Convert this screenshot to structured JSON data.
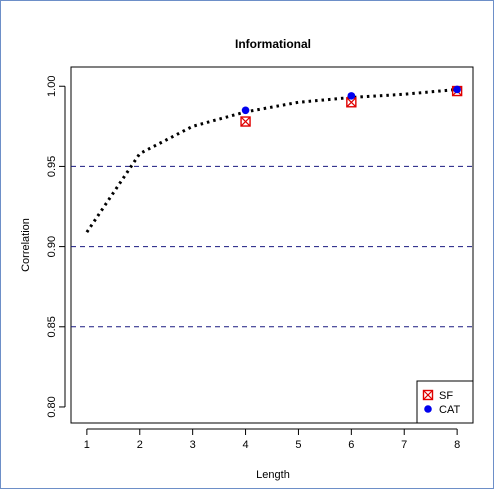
{
  "chart_data": {
    "type": "scatter",
    "title": "Informational",
    "xlabel": "Length",
    "ylabel": "Correlation",
    "xlim": [
      0.7,
      8.3
    ],
    "ylim": [
      0.79,
      1.012
    ],
    "x_ticks": [
      1,
      2,
      3,
      4,
      5,
      6,
      7,
      8
    ],
    "y_ticks": [
      0.8,
      0.85,
      0.9,
      0.95,
      1.0
    ],
    "y_tick_labels": [
      "0.80",
      "0.85",
      "0.90",
      "0.95",
      "1.00"
    ],
    "reference_lines": [
      0.85,
      0.9,
      0.95
    ],
    "curve": {
      "x": [
        1,
        2,
        3,
        4,
        5,
        6,
        7,
        8
      ],
      "y": [
        0.909,
        0.958,
        0.975,
        0.984,
        0.99,
        0.993,
        0.995,
        0.998
      ]
    },
    "series": [
      {
        "name": "SF",
        "marker": "boxed-x",
        "color": "#e00000",
        "x": [
          4,
          6,
          8
        ],
        "y": [
          0.978,
          0.99,
          0.997
        ]
      },
      {
        "name": "CAT",
        "marker": "filled-circle",
        "color": "#0000ee",
        "x": [
          4,
          6,
          8
        ],
        "y": [
          0.985,
          0.994,
          0.998
        ]
      }
    ],
    "legend_position": "bottom-right",
    "grid": false,
    "colors": {
      "reference_line": "#1a1a80",
      "curve": "#000000",
      "frame": "#6d8fc8"
    }
  }
}
